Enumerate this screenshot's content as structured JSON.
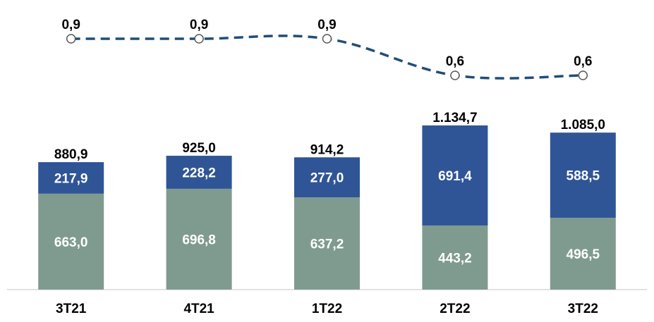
{
  "chart_data": {
    "type": "bar",
    "stacked": true,
    "categories": [
      "3T21",
      "4T21",
      "1T22",
      "2T22",
      "3T22"
    ],
    "series": [
      {
        "values": [
          663.0,
          696.8,
          637.2,
          443.2,
          496.5
        ],
        "value_labels": [
          "663,0",
          "696,8",
          "637,2",
          "443,2",
          "496,5"
        ],
        "color": "#7f9b8f"
      },
      {
        "values": [
          217.9,
          228.2,
          277.0,
          691.4,
          588.5
        ],
        "value_labels": [
          "217,9",
          "228,2",
          "277,0",
          "691,4",
          "588,5"
        ],
        "color": "#2f5597"
      }
    ],
    "totals": [
      880.9,
      925.0,
      914.2,
      1134.7,
      1085.0
    ],
    "total_labels": [
      "880,9",
      "925,0",
      "914,2",
      "1.134,7",
      "1.085,0"
    ],
    "line_series": {
      "values": [
        0.9,
        0.9,
        0.9,
        0.6,
        0.6
      ],
      "value_labels": [
        "0,9",
        "0,9",
        "0,9",
        "0,6",
        "0,6"
      ],
      "color": "#1f4e79",
      "style": "dashed",
      "markers": "hollow-circle"
    },
    "ylim": [
      0,
      1134.7
    ],
    "grid": false,
    "legend": "none",
    "title": "",
    "xlabel": "",
    "ylabel": ""
  }
}
